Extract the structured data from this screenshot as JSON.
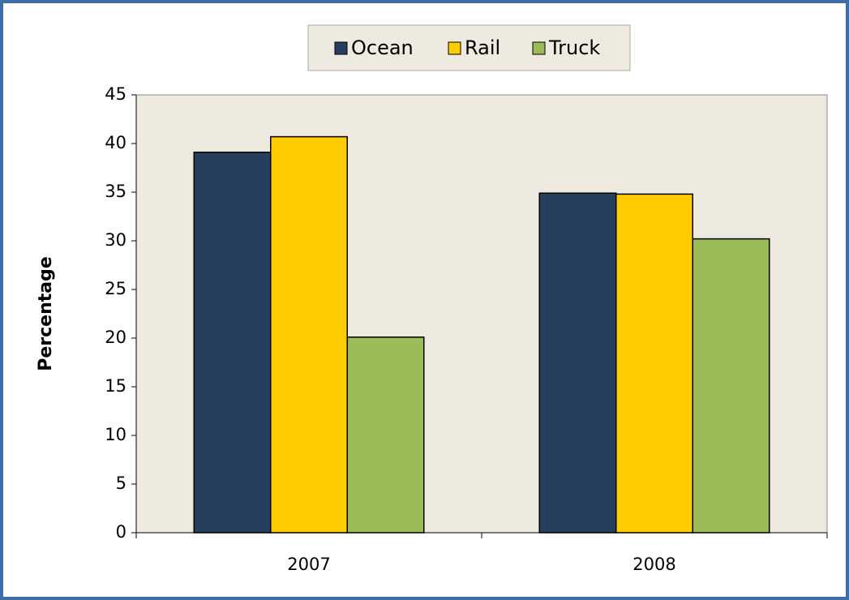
{
  "chart_data": {
    "type": "bar",
    "y_label": "Percentage",
    "categories": [
      "2007",
      "2008"
    ],
    "series": [
      {
        "name": "Ocean",
        "color": "#263f5e",
        "values": [
          39.1,
          34.9
        ]
      },
      {
        "name": "Rail",
        "color": "#ffcc00",
        "values": [
          40.7,
          34.8
        ]
      },
      {
        "name": "Truck",
        "color": "#9bbb59",
        "values": [
          20.1,
          30.2
        ]
      }
    ],
    "ylim": [
      0,
      45
    ],
    "yticks": [
      0,
      5,
      10,
      15,
      20,
      25,
      30,
      35,
      40,
      45
    ],
    "legend": "top"
  }
}
